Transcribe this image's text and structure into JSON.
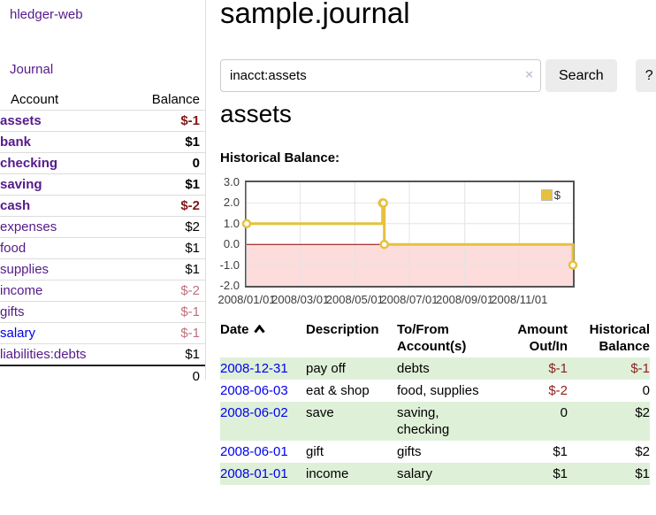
{
  "colors": {
    "link_purple": "#551a8b",
    "link_blue": "#0000ee",
    "negative_dark": "#801818",
    "negative_light": "#c0707a",
    "row_green": "#dff0d8",
    "chart_gold": "#e6c13d",
    "chart_negative_bg": "#fddcdc",
    "zero_line": "#8b0000"
  },
  "sidebar": {
    "brand": "hledger-web",
    "nav": {
      "journal": "Journal"
    },
    "accounts": {
      "headers": {
        "account": "Account",
        "balance": "Balance"
      },
      "rows": [
        {
          "name": "assets",
          "balance": "$-1"
        },
        {
          "name": "bank",
          "balance": "$1"
        },
        {
          "name": "checking",
          "balance": "0"
        },
        {
          "name": "saving",
          "balance": "$1"
        },
        {
          "name": "cash",
          "balance": "$-2"
        },
        {
          "name": "expenses",
          "balance": "$2"
        },
        {
          "name": "food",
          "balance": "$1"
        },
        {
          "name": "supplies",
          "balance": "$1"
        },
        {
          "name": "income",
          "balance": "$-2"
        },
        {
          "name": "gifts",
          "balance": "$-1"
        },
        {
          "name": "salary",
          "balance": "$-1"
        },
        {
          "name": "liabilities:debts",
          "balance": "$1"
        }
      ],
      "total": "0"
    }
  },
  "main": {
    "title": "sample.journal",
    "search": {
      "value": "inacct:assets",
      "clear_icon": "×",
      "button": "Search",
      "help": "?"
    },
    "account_heading": "assets",
    "chart_heading": "Historical Balance:"
  },
  "chart_data": {
    "type": "line",
    "title": "Historical Balance:",
    "series": [
      {
        "name": "$",
        "color": "#e6c13d",
        "step": true,
        "points": [
          {
            "date": "2008-01-01",
            "value": 1
          },
          {
            "date": "2008-06-01",
            "value": 2
          },
          {
            "date": "2008-06-02",
            "value": 2
          },
          {
            "date": "2008-06-03",
            "value": 0
          },
          {
            "date": "2008-12-31",
            "value": -1
          }
        ]
      }
    ],
    "x_start": "2008-01-01",
    "x_end": "2008-12-31",
    "x_ticks": [
      "2008/01/01",
      "2008/03/01",
      "2008/05/01",
      "2008/07/01",
      "2008/09/01",
      "2008/11/01"
    ],
    "y_ticks": [
      "3.0",
      "2.0",
      "1.0",
      "0.0",
      "-1.0",
      "-2.0"
    ],
    "ylim": [
      -2,
      3
    ],
    "grid": true,
    "legend": {
      "label": "$",
      "position": "northeast"
    },
    "negative_region_shaded": true
  },
  "transactions": {
    "headers": {
      "date": "Date",
      "description": "Description",
      "to_from": [
        "To/From",
        "Account(s)"
      ],
      "amount": [
        "Amount",
        "Out/In"
      ],
      "balance": [
        "Historical",
        "Balance"
      ]
    },
    "rows": [
      {
        "date": "2008-12-31",
        "description": "pay off",
        "accounts": [
          "debts"
        ],
        "amount": "$-1",
        "balance": "$-1"
      },
      {
        "date": "2008-06-03",
        "description": "eat & shop",
        "accounts": [
          "food, supplies"
        ],
        "amount": "$-2",
        "balance": "0"
      },
      {
        "date": "2008-06-02",
        "description": "save",
        "accounts": [
          "saving,",
          "checking"
        ],
        "amount": "0",
        "balance": "$2"
      },
      {
        "date": "2008-06-01",
        "description": "gift",
        "accounts": [
          "gifts"
        ],
        "amount": "$1",
        "balance": "$2"
      },
      {
        "date": "2008-01-01",
        "description": "income",
        "accounts": [
          "salary"
        ],
        "amount": "$1",
        "balance": "$1"
      }
    ]
  }
}
